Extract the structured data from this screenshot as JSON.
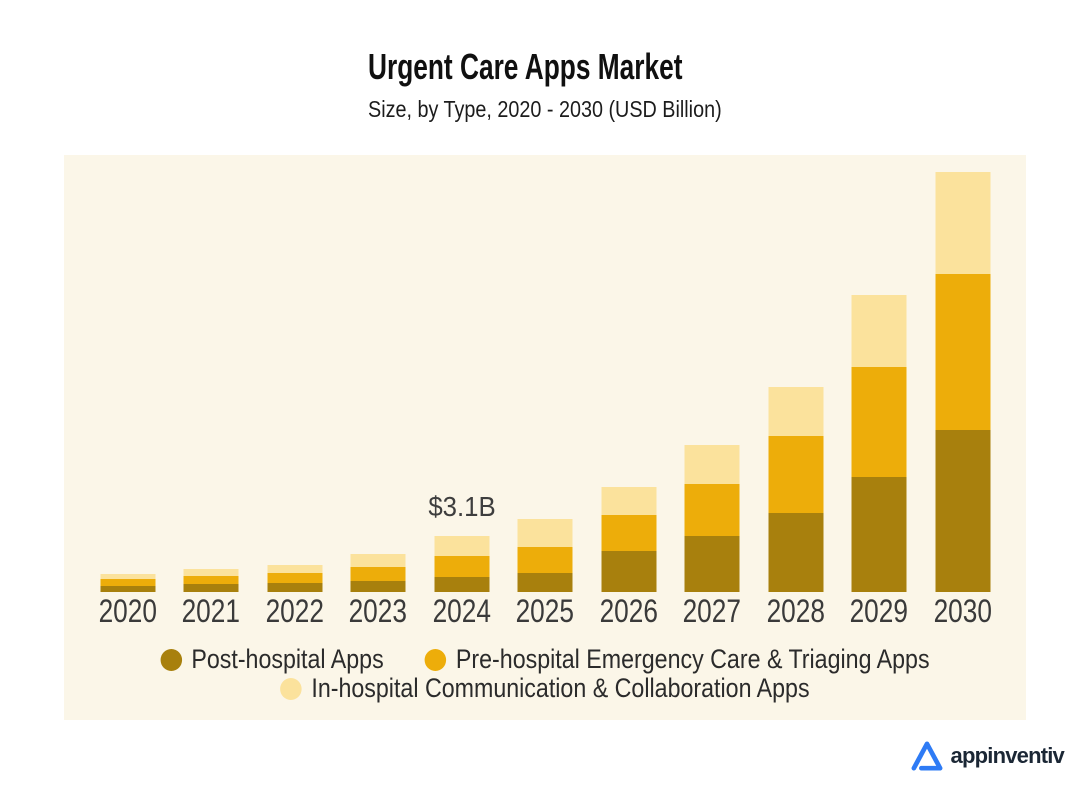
{
  "header": {
    "title": "Urgent Care Apps Market",
    "subtitle": "Size, by Type, 2020 - 2030 (USD Billion)"
  },
  "chart_data": {
    "type": "bar",
    "stacked": true,
    "title": "Urgent Care Apps Market",
    "subtitle": "Size, by Type, 2020 - 2030 (USD Billion)",
    "unit": "USD Billion",
    "categories": [
      "2020",
      "2021",
      "2022",
      "2023",
      "2024",
      "2025",
      "2026",
      "2027",
      "2028",
      "2029",
      "2030"
    ],
    "series": [
      {
        "name": "Post-hospital Apps",
        "color": "#A8800D",
        "values": [
          0.31,
          0.42,
          0.5,
          0.64,
          0.84,
          1.04,
          2.27,
          3.11,
          4.41,
          6.42,
          9.07
        ]
      },
      {
        "name": "Pre-hospital Emergency Care & Triaging Apps",
        "color": "#EDAD0A",
        "values": [
          0.43,
          0.45,
          0.56,
          0.77,
          1.15,
          1.49,
          2.05,
          2.94,
          4.28,
          6.15,
          8.72
        ]
      },
      {
        "name": "In-hospital Communication & Collaboration Apps",
        "color": "#FBE29C",
        "values": [
          0.24,
          0.43,
          0.47,
          0.73,
          1.12,
          1.53,
          1.55,
          2.18,
          2.76,
          4.04,
          5.68
        ]
      }
    ],
    "totals": [
      0.98,
      1.3,
      1.53,
      2.14,
      3.11,
      4.06,
      5.87,
      8.23,
      11.45,
      16.61,
      23.47
    ],
    "annotation": {
      "year": "2024",
      "label": "$3.1B"
    },
    "background": "#FBF6E8",
    "grid": false,
    "legend_position": "bottom",
    "ylim": [
      0,
      24.5
    ]
  },
  "logo": {
    "text": "appinventiv",
    "accent": "#2E7BF5",
    "text_color": "#1B2735"
  }
}
